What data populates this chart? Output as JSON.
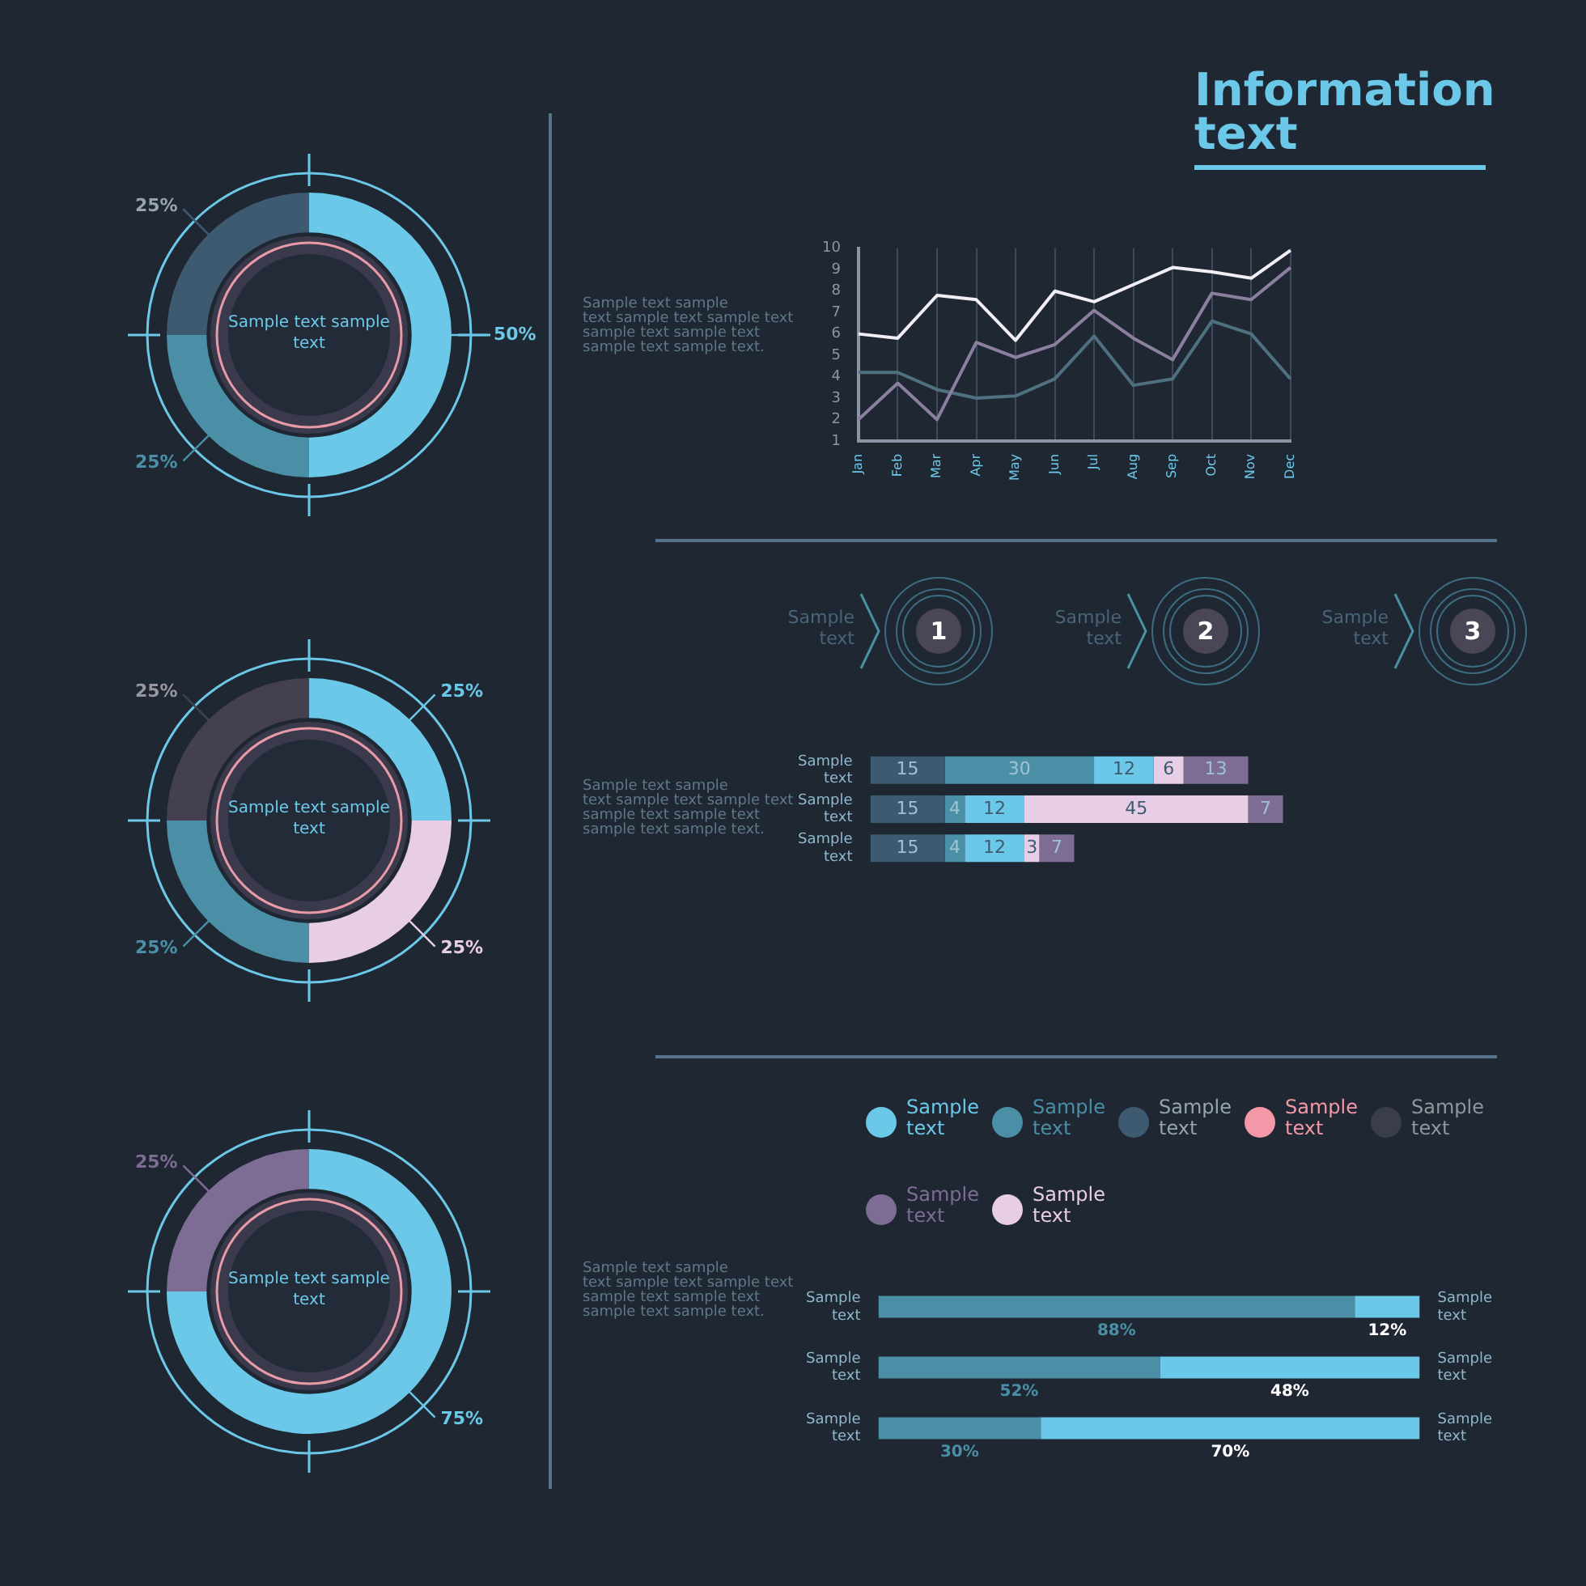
{
  "chart_data": [
    {
      "type": "donut",
      "categories": [
        null,
        null,
        null
      ],
      "values": [
        50,
        25,
        25
      ],
      "colors": [
        "#6cc8e8",
        "#4a8fa5",
        "#3e5a70"
      ],
      "value_labels": [
        "50%",
        "25%",
        "25%"
      ],
      "annotations": [
        "Sample text sample text"
      ]
    },
    {
      "type": "donut",
      "categories": [
        null,
        null,
        null,
        null
      ],
      "values": [
        25,
        25,
        25,
        25
      ],
      "colors": [
        "#6cc8e8",
        "#e8cde6",
        "#4a8fa5",
        "#44404f"
      ],
      "value_labels": [
        "25%",
        "25%",
        "25%",
        "25%"
      ],
      "annotations": [
        "Sample text sample text"
      ]
    },
    {
      "type": "donut",
      "categories": [
        null,
        null
      ],
      "values": [
        75,
        25
      ],
      "colors": [
        "#6cc8e8",
        "#7d6c94"
      ],
      "value_labels": [
        "75%",
        "25%"
      ],
      "annotations": [
        "Sample text sample text"
      ]
    },
    {
      "type": "line",
      "title": "Information text",
      "categories": [
        "Jan",
        "Feb",
        "Mar",
        "Apr",
        "May",
        "Jun",
        "Jul",
        "Aug",
        "Sep",
        "Oct",
        "Nov",
        "Dec"
      ],
      "series": [
        {
          "color": "#f2eef5",
          "values": [
            6,
            5.8,
            7.8,
            7.6,
            5.7,
            8,
            7.5,
            8.3,
            9.1,
            8.9,
            8.6,
            9.9
          ]
        },
        {
          "color": "#8b7fa0",
          "values": [
            2,
            3.7,
            2,
            5.6,
            4.9,
            5.5,
            7.1,
            5.8,
            4.8,
            7.9,
            7.6,
            9.1
          ]
        },
        {
          "color": "#4f7080",
          "values": [
            4.2,
            4.2,
            3.4,
            3,
            3.1,
            3.9,
            5.9,
            3.6,
            3.9,
            6.6,
            6,
            3.9
          ]
        }
      ],
      "ylim": [
        1,
        10
      ],
      "yticks": [
        1,
        2,
        3,
        4,
        5,
        6,
        7,
        8,
        9,
        10
      ],
      "grid": "x",
      "annotations": [
        "Sample text sample\ntext sample text sample text\nsample text sample text\nsample text  sample text."
      ]
    },
    {
      "type": "other",
      "annotations": [
        "Sample text",
        "1",
        "Sample text",
        "2",
        "Sample text",
        "3"
      ]
    },
    {
      "type": "bar",
      "orientation": "horizontal",
      "stacked": true,
      "data_labels": true,
      "categories": [
        "Sample text",
        "Sample text",
        "Sample text"
      ],
      "series": [
        {
          "color": "#3e5a70",
          "values": [
            15,
            15,
            15
          ]
        },
        {
          "color": "#4a8fa5",
          "values": [
            30,
            4,
            4
          ]
        },
        {
          "color": "#6cc8e8",
          "values": [
            12,
            12,
            12
          ]
        },
        {
          "color": "#e8cde6",
          "values": [
            6,
            45,
            3
          ]
        },
        {
          "color": "#7d6c94",
          "values": [
            13,
            7,
            7
          ]
        }
      ],
      "annotations": [
        "Sample text sample\ntext sample text sample text\nsample text sample text\nsample text  sample text."
      ]
    },
    {
      "type": "other",
      "annotations": [
        "Sample text",
        "Sample text",
        "Sample text",
        "Sample text",
        "Sample text",
        "Sample text",
        "Sample text"
      ]
    },
    {
      "type": "bar",
      "orientation": "horizontal",
      "stacked": true,
      "categories": [
        "Sample text",
        "Sample text",
        "Sample text"
      ],
      "y2_categories": [
        "Sample text",
        "Sample text",
        "Sample text"
      ],
      "series": [
        {
          "color": "#4a8fa5",
          "values": [
            88,
            52,
            30
          ],
          "value_labels": [
            "88%",
            "52%",
            "30%"
          ]
        },
        {
          "color": "#6cc8e8",
          "values": [
            12,
            48,
            70
          ],
          "value_labels": [
            "12%",
            "48%",
            "70%"
          ]
        }
      ],
      "annotations": [
        "Sample text sample\ntext sample text sample text\nsample text sample text\nsample text  sample text."
      ]
    }
  ]
}
